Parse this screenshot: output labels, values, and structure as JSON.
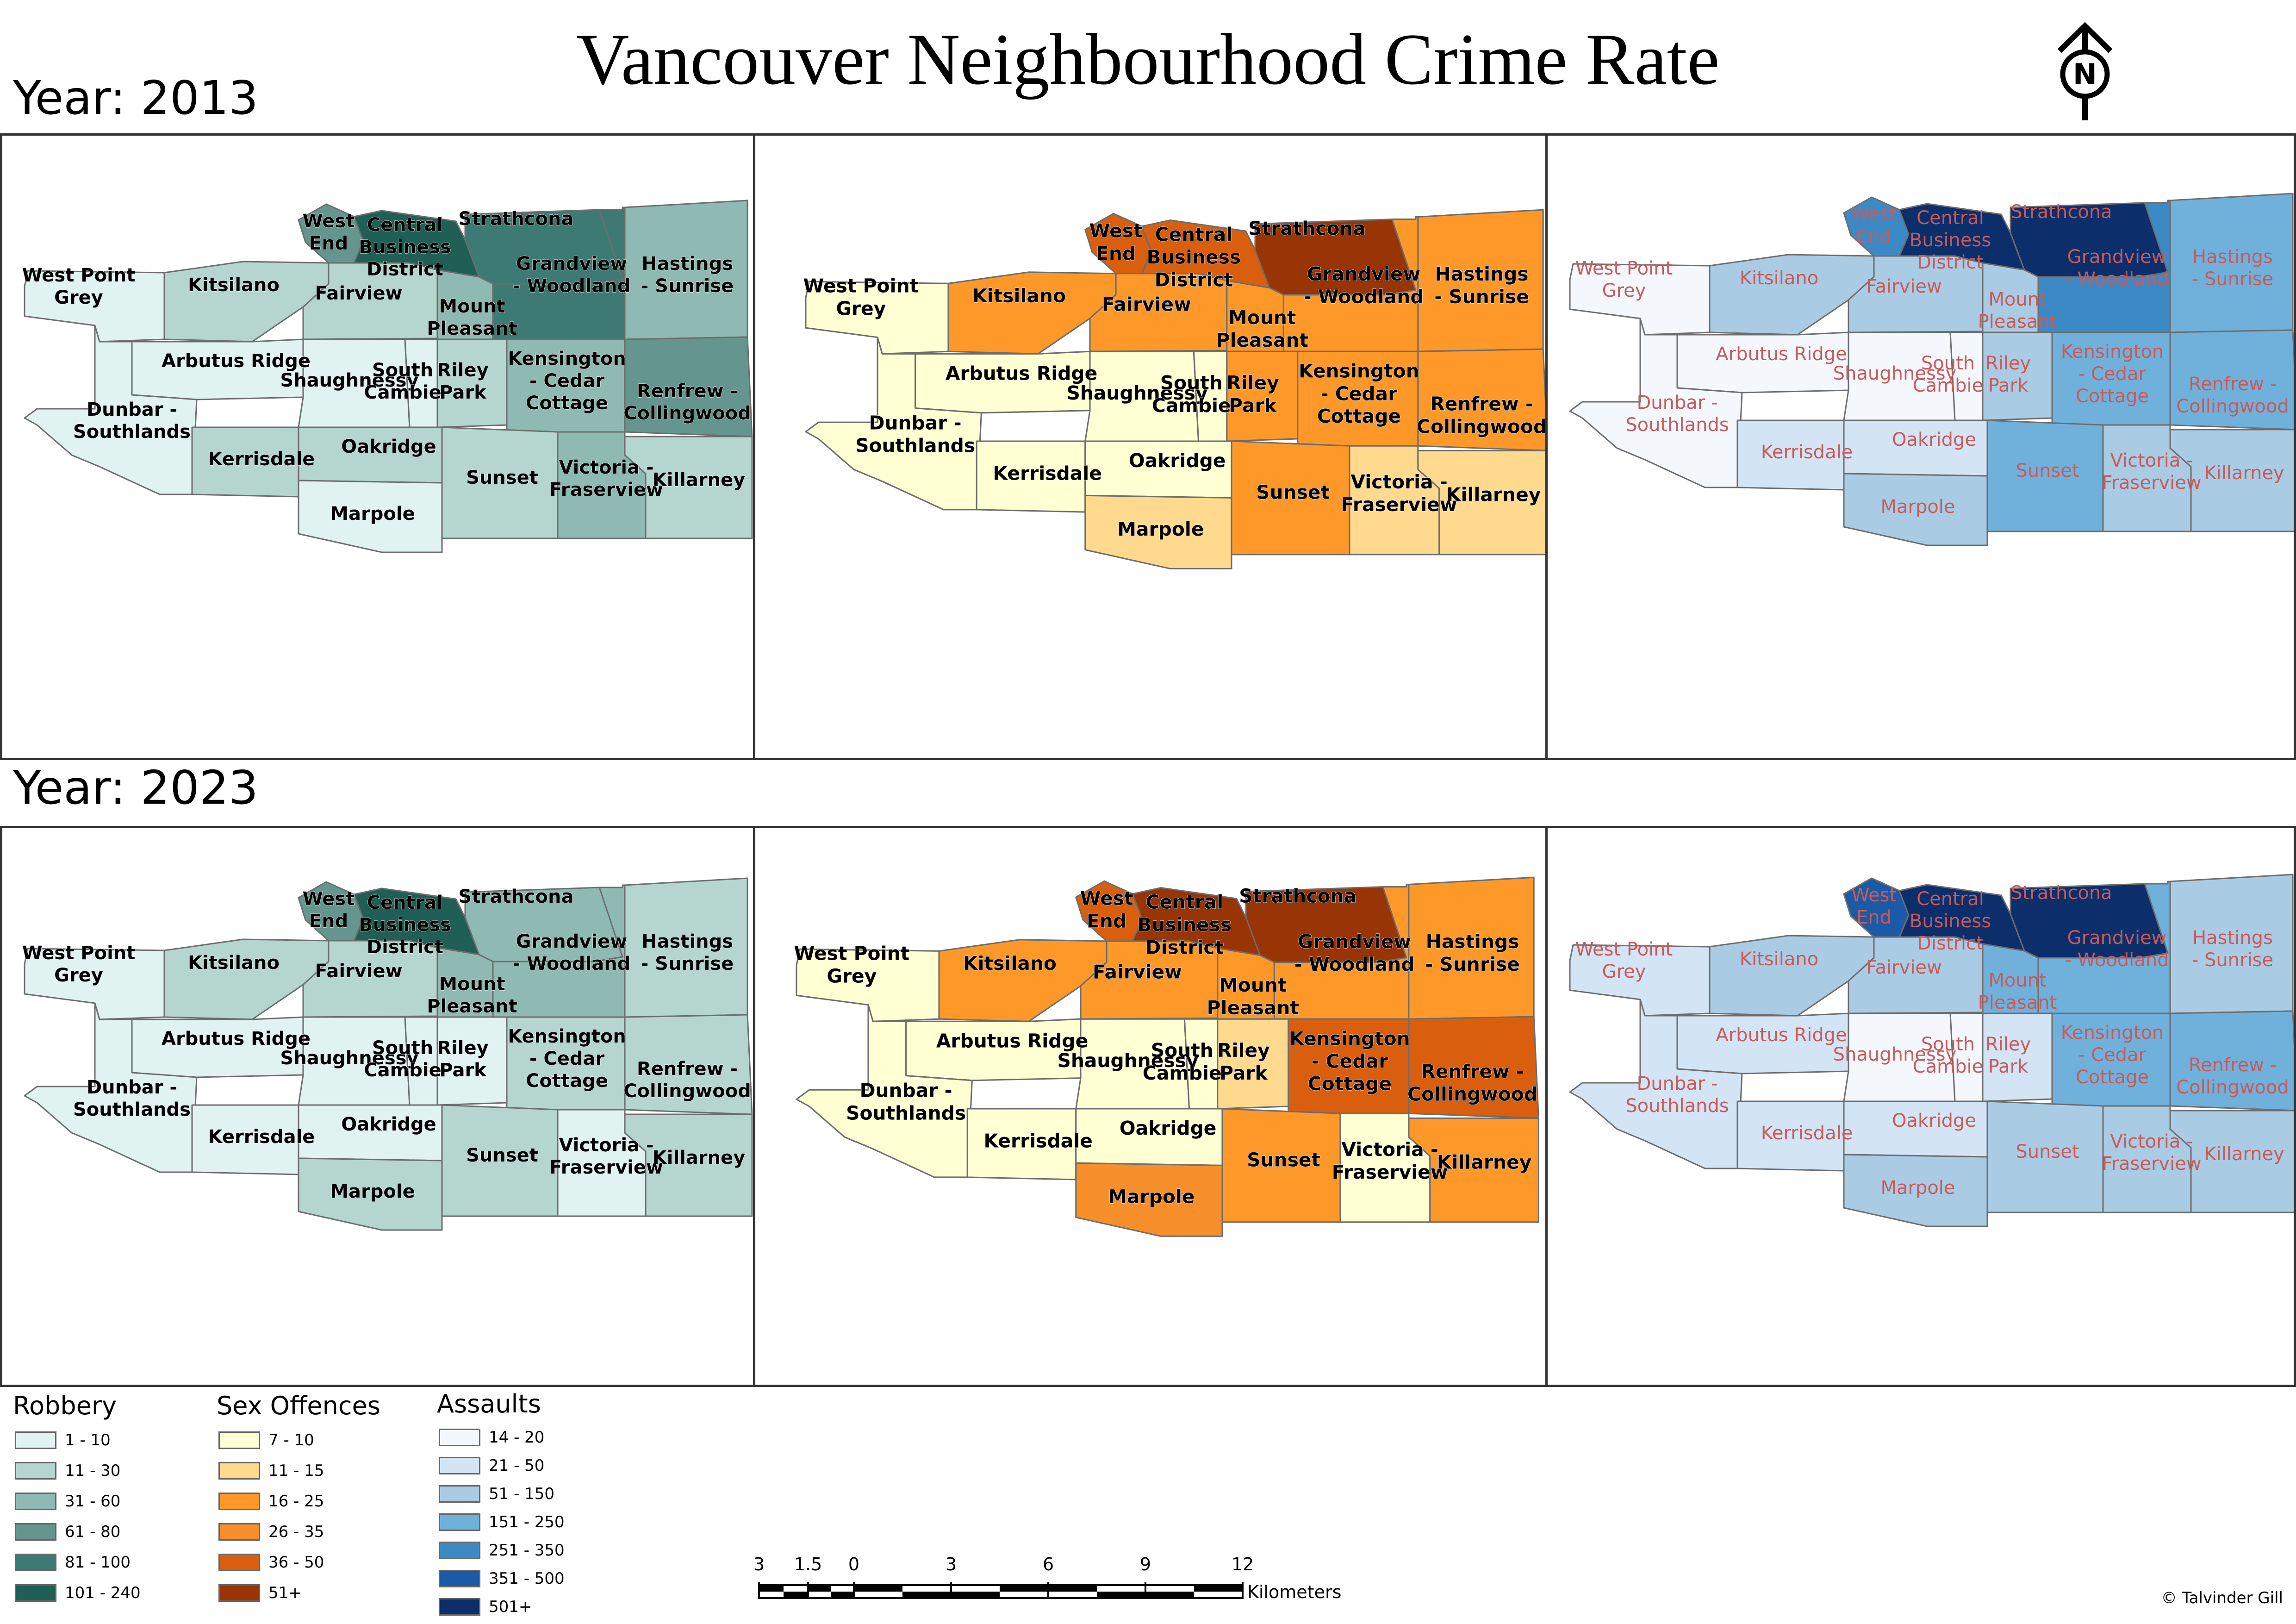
{
  "title": "Vancouver Neighbourhood Crime Rate",
  "north_arrow_letter": "N",
  "credit": "© Talvinder Gill",
  "years": [
    "Year: 2013",
    "Year: 2023"
  ],
  "colors": {
    "robbery": [
      "#e0f3f1",
      "#b5d5cf",
      "#8fbab3",
      "#64968f",
      "#3d7a74",
      "#1f5f55"
    ],
    "sex_offences": [
      "#ffffd4",
      "#fed98e",
      "#fe9929",
      "#f7902b",
      "#d95f0e",
      "#993404"
    ],
    "assaults": [
      "#f4f8fd",
      "#d3e4f4",
      "#a9cce4",
      "#70b1dc",
      "#3c8ac5",
      "#1a5aa6",
      "#0c2f6b"
    ],
    "robbery_label": "#000000",
    "sex_label": "#000000",
    "assault_label": "#c85a5a"
  },
  "neighbourhoods": [
    "West Point Grey",
    "Kitsilano",
    "Fairview",
    "West End",
    "Central Business District",
    "Strathcona",
    "Grandview - Woodland",
    "Hastings - Sunrise",
    "Mount Pleasant",
    "Arbutus Ridge",
    "Shaughnessy",
    "South Cambie",
    "Riley Park",
    "Kensington - Cedar Cottage",
    "Renfrew - Collingwood",
    "Dunbar - Southlands",
    "Kerrisdale",
    "Oakridge",
    "Marpole",
    "Sunset",
    "Victoria - Fraserview",
    "Killarney"
  ],
  "map_labels": {
    "West Point Grey": [
      "West Point",
      "Grey"
    ],
    "Kitsilano": [
      "Kitsilano"
    ],
    "Fairview": [
      "Fairview"
    ],
    "West End": [
      "West",
      "End"
    ],
    "Central Business District": [
      "Central",
      "Business",
      "District"
    ],
    "Strathcona": [
      "Strathcona"
    ],
    "Grandview - Woodland": [
      "Grandview",
      "- Woodland"
    ],
    "Hastings - Sunrise": [
      "Hastings",
      "- Sunrise"
    ],
    "Mount Pleasant": [
      "Mount",
      "Pleasant"
    ],
    "Arbutus Ridge": [
      "Arbutus Ridge"
    ],
    "Shaughnessy": [
      "Shaughnessy"
    ],
    "South Cambie": [
      "South",
      "Cambie"
    ],
    "Riley Park": [
      "Riley",
      "Park"
    ],
    "Kensington - Cedar Cottage": [
      "Kensington",
      "- Cedar",
      "Cottage"
    ],
    "Renfrew - Collingwood": [
      "Renfrew -",
      "Collingwood"
    ],
    "Dunbar - Southlands": [
      "Dunbar -",
      "Southlands"
    ],
    "Kerrisdale": [
      "Kerrisdale"
    ],
    "Oakridge": [
      "Oakridge"
    ],
    "Marpole": [
      "Marpole"
    ],
    "Sunset": [
      "Sunset"
    ],
    "Victoria - Fraserview": [
      "Victoria -",
      "Fraserview"
    ],
    "Killarney": [
      "Killarney"
    ]
  },
  "maps": [
    {
      "year": "2013",
      "crime": "Robbery",
      "palette": "robbery",
      "label_color": "robbery_label",
      "classes": {
        "West Point Grey": 0,
        "Kitsilano": 1,
        "Fairview": 1,
        "West End": 3,
        "Central Business District": 5,
        "Strathcona": 4,
        "Grandview - Woodland": 4,
        "Hastings - Sunrise": 2,
        "Mount Pleasant": 2,
        "Arbutus Ridge": 0,
        "Shaughnessy": 0,
        "South Cambie": 0,
        "Riley Park": 1,
        "Kensington - Cedar Cottage": 2,
        "Renfrew - Collingwood": 3,
        "Dunbar - Southlands": 0,
        "Kerrisdale": 1,
        "Oakridge": 1,
        "Marpole": 0,
        "Sunset": 1,
        "Victoria - Fraserview": 2,
        "Killarney": 1
      }
    },
    {
      "year": "2013",
      "crime": "Sex Offences",
      "palette": "sex_offences",
      "label_color": "sex_label",
      "classes": {
        "West Point Grey": 0,
        "Kitsilano": 2,
        "Fairview": 2,
        "West End": 4,
        "Central Business District": 4,
        "Strathcona": 5,
        "Grandview - Woodland": 2,
        "Hastings - Sunrise": 2,
        "Mount Pleasant": 2,
        "Arbutus Ridge": 0,
        "Shaughnessy": 0,
        "South Cambie": 0,
        "Riley Park": 2,
        "Kensington - Cedar Cottage": 2,
        "Renfrew - Collingwood": 2,
        "Dunbar - Southlands": 0,
        "Kerrisdale": 0,
        "Oakridge": 0,
        "Marpole": 1,
        "Sunset": 2,
        "Victoria - Fraserview": 1,
        "Killarney": 1
      }
    },
    {
      "year": "2013",
      "crime": "Assaults",
      "palette": "assaults",
      "label_color": "assault_label",
      "classes": {
        "West Point Grey": 0,
        "Kitsilano": 2,
        "Fairview": 2,
        "West End": 4,
        "Central Business District": 6,
        "Strathcona": 6,
        "Grandview - Woodland": 4,
        "Hastings - Sunrise": 3,
        "Mount Pleasant": 2,
        "Arbutus Ridge": 0,
        "Shaughnessy": 0,
        "South Cambie": 0,
        "Riley Park": 2,
        "Kensington - Cedar Cottage": 3,
        "Renfrew - Collingwood": 3,
        "Dunbar - Southlands": 0,
        "Kerrisdale": 1,
        "Oakridge": 1,
        "Marpole": 2,
        "Sunset": 3,
        "Victoria - Fraserview": 2,
        "Killarney": 2
      }
    },
    {
      "year": "2023",
      "crime": "Robbery",
      "palette": "robbery",
      "label_color": "robbery_label",
      "classes": {
        "West Point Grey": 0,
        "Kitsilano": 1,
        "Fairview": 1,
        "West End": 3,
        "Central Business District": 5,
        "Strathcona": 2,
        "Grandview - Woodland": 2,
        "Hastings - Sunrise": 1,
        "Mount Pleasant": 2,
        "Arbutus Ridge": 0,
        "Shaughnessy": 0,
        "South Cambie": 0,
        "Riley Park": 0,
        "Kensington - Cedar Cottage": 1,
        "Renfrew - Collingwood": 1,
        "Dunbar - Southlands": 0,
        "Kerrisdale": 0,
        "Oakridge": 0,
        "Marpole": 1,
        "Sunset": 1,
        "Victoria - Fraserview": 0,
        "Killarney": 1
      }
    },
    {
      "year": "2023",
      "crime": "Sex Offences",
      "palette": "sex_offences",
      "label_color": "sex_label",
      "classes": {
        "West Point Grey": 0,
        "Kitsilano": 2,
        "Fairview": 2,
        "West End": 4,
        "Central Business District": 5,
        "Strathcona": 5,
        "Grandview - Woodland": 2,
        "Hastings - Sunrise": 2,
        "Mount Pleasant": 2,
        "Arbutus Ridge": 0,
        "Shaughnessy": 0,
        "South Cambie": 0,
        "Riley Park": 1,
        "Kensington - Cedar Cottage": 4,
        "Renfrew - Collingwood": 4,
        "Dunbar - Southlands": 0,
        "Kerrisdale": 0,
        "Oakridge": 0,
        "Marpole": 3,
        "Sunset": 2,
        "Victoria - Fraserview": 0,
        "Killarney": 2
      }
    },
    {
      "year": "2023",
      "crime": "Assaults",
      "palette": "assaults",
      "label_color": "assault_label",
      "classes": {
        "West Point Grey": 1,
        "Kitsilano": 2,
        "Fairview": 2,
        "West End": 5,
        "Central Business District": 6,
        "Strathcona": 6,
        "Grandview - Woodland": 3,
        "Hastings - Sunrise": 2,
        "Mount Pleasant": 3,
        "Arbutus Ridge": 1,
        "Shaughnessy": 0,
        "South Cambie": 0,
        "Riley Park": 1,
        "Kensington - Cedar Cottage": 3,
        "Renfrew - Collingwood": 3,
        "Dunbar - Southlands": 1,
        "Kerrisdale": 1,
        "Oakridge": 1,
        "Marpole": 2,
        "Sunset": 2,
        "Victoria - Fraserview": 2,
        "Killarney": 2
      }
    }
  ],
  "legends": [
    {
      "title": "Robbery",
      "palette": "robbery",
      "classes": [
        "1 - 10",
        "11 - 30",
        "31 - 60",
        "61 - 80",
        "81 - 100",
        "101 - 240"
      ]
    },
    {
      "title": "Sex Offences",
      "palette": "sex_offences",
      "classes": [
        "7 - 10",
        "11 - 15",
        "16 - 25",
        "26 - 35",
        "36 - 50",
        "51+"
      ]
    },
    {
      "title": "Assaults",
      "palette": "assaults",
      "classes": [
        "14 - 20",
        "21 - 50",
        "51 - 150",
        "151 - 250",
        "251 - 350",
        "351 - 500",
        "501+"
      ]
    }
  ],
  "scale_bar": {
    "ticks": [
      "3",
      "1.5",
      "0",
      "3",
      "6",
      "9",
      "12"
    ],
    "unit": "Kilometers"
  }
}
